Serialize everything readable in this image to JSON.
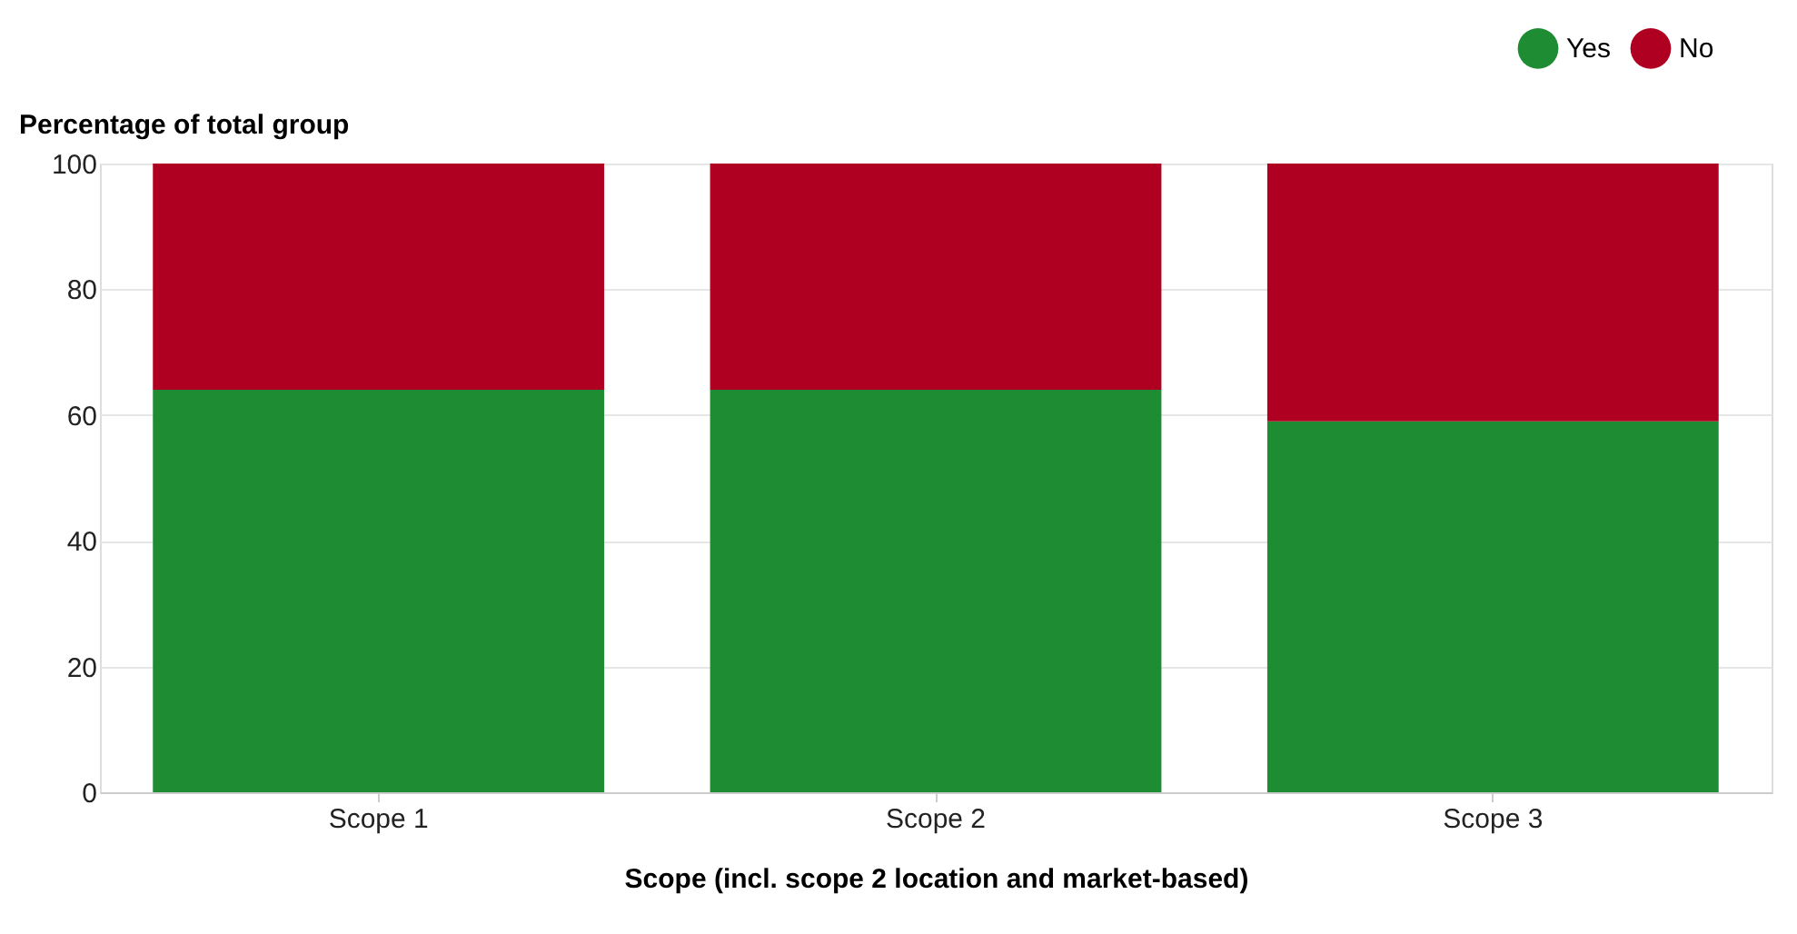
{
  "chart_data": {
    "type": "bar",
    "stacked": true,
    "xlabel": "Scope (incl. scope 2 location and market-based)",
    "ylabel": "Percentage of total group",
    "categories": [
      "Scope 1",
      "Scope 2",
      "Scope 3"
    ],
    "series": [
      {
        "name": "Yes",
        "color": "#1e8c32",
        "values": [
          64,
          64,
          59
        ]
      },
      {
        "name": "No",
        "color": "#b00022",
        "values": [
          36,
          36,
          41
        ]
      }
    ],
    "ylim": [
      0,
      100
    ],
    "yticks": [
      0,
      20,
      40,
      60,
      80,
      100
    ],
    "grid": "y",
    "legend": "top right"
  }
}
